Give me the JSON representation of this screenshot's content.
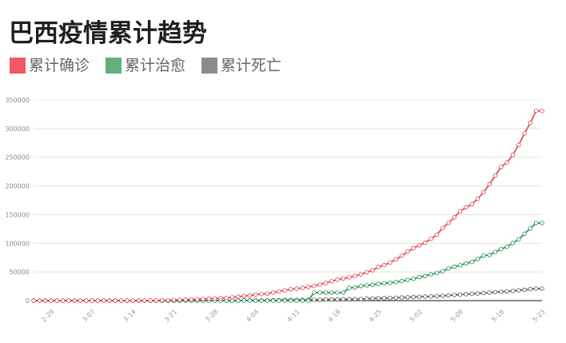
{
  "title": "巴西疫情累计趋势",
  "legend": [
    {
      "label": "累计确诊",
      "color": "#f15a5f"
    },
    {
      "label": "累计治愈",
      "color": "#63b178"
    },
    {
      "label": "累计死亡",
      "color": "#8a8a8f"
    }
  ],
  "chart_data": {
    "type": "line",
    "title": "巴西疫情累计趋势",
    "xlabel": "",
    "ylabel": "",
    "ylim": [
      0,
      350000
    ],
    "yticks": [
      0,
      50000,
      100000,
      150000,
      200000,
      250000,
      300000,
      350000
    ],
    "xtick_labels": [
      "2-29",
      "3-07",
      "3-14",
      "3-21",
      "3-28",
      "4-04",
      "4-11",
      "4-18",
      "4-25",
      "5-02",
      "5-09",
      "5-16",
      "5-23"
    ],
    "grid": true,
    "legend_position": "top-left",
    "x_start": "2-26",
    "x_end": "5-23",
    "series": [
      {
        "name": "累计确诊",
        "color": "#e0404f",
        "values": [
          1,
          1,
          1,
          2,
          2,
          2,
          2,
          3,
          8,
          13,
          19,
          25,
          25,
          34,
          52,
          77,
          98,
          121,
          200,
          234,
          291,
          428,
          621,
          904,
          1128,
          1546,
          1924,
          2247,
          2554,
          2985,
          3417,
          3904,
          4256,
          4579,
          5717,
          6880,
          7910,
          9056,
          10360,
          11254,
          12183,
          14049,
          16188,
          18145,
          19789,
          20984,
          22318,
          23723,
          25684,
          28320,
          30683,
          33682,
          36722,
          38654,
          40743,
          43079,
          45757,
          49492,
          52995,
          58509,
          61888,
          66501,
          71886,
          78162,
          85380,
          91299,
          96559,
          101147,
          107780,
          114715,
          126611,
          135693,
          145328,
          155939,
          162699,
          168331,
          177589,
          188974,
          202918,
          218223,
          233142,
          241080,
          254220,
          271628,
          291579,
          310087,
          330890,
          330890
        ]
      },
      {
        "name": "累计治愈",
        "color": "#1e8a4a",
        "values": [
          0,
          0,
          0,
          0,
          0,
          0,
          0,
          0,
          0,
          0,
          0,
          0,
          0,
          0,
          0,
          0,
          0,
          0,
          0,
          0,
          0,
          0,
          0,
          0,
          0,
          0,
          0,
          0,
          0,
          0,
          0,
          0,
          0,
          0,
          0,
          0,
          0,
          0,
          0,
          0,
          0,
          0,
          0,
          0,
          0,
          0,
          0,
          0,
          14026,
          14026,
          14026,
          14026,
          14026,
          14026,
          22130,
          22991,
          25318,
          26573,
          27655,
          29160,
          30152,
          31142,
          32544,
          34132,
          35935,
          38039,
          40937,
          42991,
          45815,
          48221,
          51370,
          55982,
          59297,
          61685,
          64957,
          67384,
          72597,
          78424,
          79479,
          84970,
          89672,
          94122,
          100459,
          106794,
          116683,
          125960,
          135430,
          135430
        ]
      },
      {
        "name": "累计死亡",
        "color": "#555555",
        "values": [
          0,
          0,
          0,
          0,
          0,
          0,
          0,
          0,
          0,
          0,
          0,
          0,
          0,
          0,
          0,
          0,
          0,
          0,
          0,
          0,
          1,
          3,
          6,
          11,
          18,
          25,
          34,
          46,
          59,
          77,
          92,
          111,
          136,
          159,
          201,
          240,
          327,
          359,
          445,
          486,
          564,
          686,
          819,
          950,
          1074,
          1141,
          1223,
          1328,
          1532,
          1736,
          1924,
          2141,
          2354,
          2462,
          2587,
          2741,
          2906,
          3331,
          3704,
          4057,
          4286,
          4603,
          5017,
          5466,
          5901,
          6329,
          6750,
          7025,
          7321,
          7921,
          8536,
          9146,
          9897,
          10627,
          11123,
          11653,
          12400,
          13149,
          13993,
          14817,
          15633,
          16118,
          16853,
          17983,
          18859,
          20047,
          21048,
          21048
        ]
      }
    ]
  }
}
